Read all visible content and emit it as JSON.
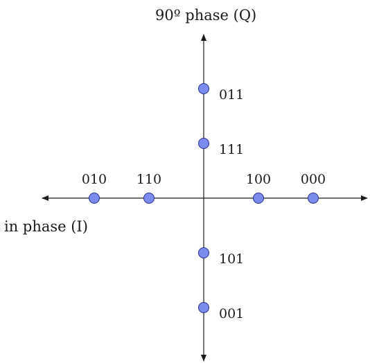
{
  "axes": {
    "i_label": "in phase (I)",
    "q_label": "90º phase (Q)"
  },
  "colors": {
    "point_fill": "#7b8aed",
    "point_stroke": "#2a2f8f",
    "axis": "#1a1a1a",
    "text": "#1a1a1a"
  },
  "constellation": {
    "on_i_axis": [
      {
        "label": "010",
        "i": -4
      },
      {
        "label": "110",
        "i": -2
      },
      {
        "label": "100",
        "i": 2
      },
      {
        "label": "000",
        "i": 4
      }
    ],
    "on_q_axis": [
      {
        "label": "011",
        "q": 4
      },
      {
        "label": "111",
        "q": 2
      },
      {
        "label": "101",
        "q": -2
      },
      {
        "label": "001",
        "q": -4
      }
    ]
  }
}
